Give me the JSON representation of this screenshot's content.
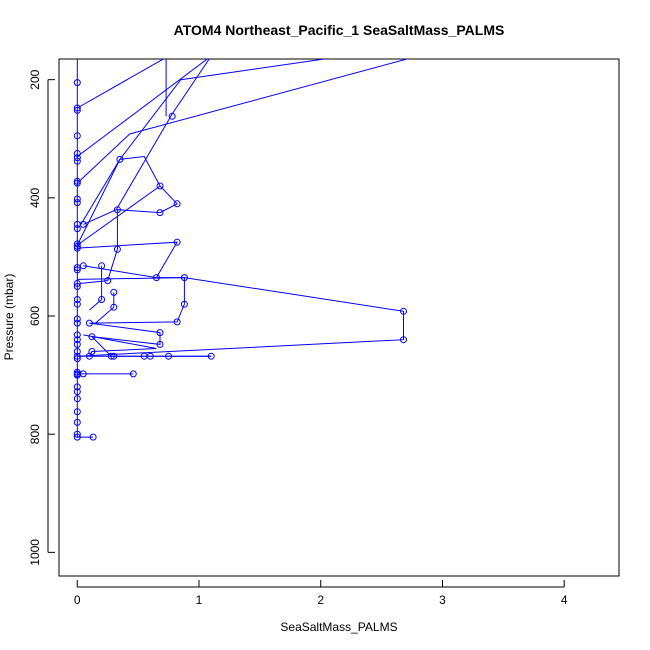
{
  "chart_data": {
    "type": "line",
    "title": "ATOM4 Northeast_Pacific_1 SeaSaltMass_PALMS",
    "xlabel": "SeaSaltMass_PALMS",
    "ylabel": "Pressure (mbar)",
    "xlim": [
      -0.15,
      4.45
    ],
    "ylim": [
      1040,
      165
    ],
    "y_inverted": true,
    "x_ticks": [
      0,
      1,
      2,
      3,
      4
    ],
    "y_ticks": [
      200,
      400,
      600,
      800,
      1000
    ],
    "grid": false,
    "legend": "none",
    "series_color": "#0000ff",
    "series": [
      {
        "points": [
          [
            0.0,
            160
          ],
          [
            0.0,
            205
          ],
          [
            0.0,
            248
          ],
          [
            0.0,
            252
          ],
          [
            0.0,
            295
          ],
          [
            0.0,
            325
          ],
          [
            0.0,
            332
          ],
          [
            0.0,
            338
          ],
          [
            0.0,
            372
          ],
          [
            0.0,
            375
          ],
          [
            0.0,
            402
          ],
          [
            0.0,
            408
          ],
          [
            0.0,
            445
          ],
          [
            0.0,
            452
          ],
          [
            0.0,
            478
          ],
          [
            0.0,
            482
          ],
          [
            0.0,
            485
          ],
          [
            0.0,
            518
          ],
          [
            0.0,
            522
          ],
          [
            0.0,
            545
          ],
          [
            0.0,
            550
          ],
          [
            0.0,
            572
          ],
          [
            0.0,
            580
          ],
          [
            0.0,
            605
          ],
          [
            0.0,
            612
          ],
          [
            0.0,
            632
          ],
          [
            0.0,
            640
          ],
          [
            0.0,
            648
          ],
          [
            0.0,
            660
          ],
          [
            0.0,
            668
          ],
          [
            0.0,
            672
          ],
          [
            0.0,
            695
          ],
          [
            0.0,
            698
          ],
          [
            0.0,
            700
          ],
          [
            0.0,
            720
          ],
          [
            0.0,
            728
          ],
          [
            0.0,
            740
          ],
          [
            0.0,
            762
          ],
          [
            0.0,
            780
          ],
          [
            0.0,
            800
          ],
          [
            0.0,
            805
          ],
          [
            0.13,
            805
          ],
          [
            0.0,
            805
          ]
        ]
      },
      {
        "points": [
          [
            0.05,
            445
          ],
          [
            0.32,
            420
          ],
          [
            0.78,
            258
          ],
          [
            1.1,
            160
          ]
        ]
      },
      {
        "points": [
          [
            0.0,
            330
          ],
          [
            1.1,
            160
          ]
        ]
      },
      {
        "points": [
          [
            0.0,
            248
          ],
          [
            0.75,
            160
          ]
        ]
      },
      {
        "points": [
          [
            0.73,
            160
          ],
          [
            0.73,
            262
          ]
        ]
      },
      {
        "points": [
          [
            0.0,
            375
          ],
          [
            0.43,
            292
          ],
          [
            2.8,
            160
          ]
        ]
      },
      {
        "points": [
          [
            0.0,
            480
          ],
          [
            0.35,
            335
          ],
          [
            0.85,
            200
          ],
          [
            2.2,
            160
          ]
        ]
      },
      {
        "points": [
          [
            0.03,
            445
          ],
          [
            0.35,
            335
          ],
          [
            0.55,
            330
          ],
          [
            0.68,
            380
          ],
          [
            0.82,
            410
          ],
          [
            0.68,
            425
          ],
          [
            0.33,
            420
          ],
          [
            0.33,
            487
          ],
          [
            0.28,
            520
          ],
          [
            0.25,
            540
          ],
          [
            0.02,
            545
          ]
        ]
      },
      {
        "points": [
          [
            0.0,
            480
          ],
          [
            0.68,
            380
          ]
        ]
      },
      {
        "points": [
          [
            0.0,
            485
          ],
          [
            0.82,
            475
          ],
          [
            0.65,
            535
          ],
          [
            0.05,
            515
          ]
        ]
      },
      {
        "points": [
          [
            0.65,
            535
          ],
          [
            0.88,
            535
          ],
          [
            0.88,
            580
          ],
          [
            0.82,
            610
          ],
          [
            0.1,
            612
          ],
          [
            0.68,
            628
          ],
          [
            0.68,
            648
          ],
          [
            0.12,
            635
          ],
          [
            0.28,
            668
          ],
          [
            0.55,
            668
          ],
          [
            1.1,
            668
          ]
        ]
      },
      {
        "points": [
          [
            0.2,
            515
          ],
          [
            0.2,
            572
          ],
          [
            0.1,
            590
          ]
        ]
      },
      {
        "points": [
          [
            0.3,
            560
          ],
          [
            0.3,
            585
          ],
          [
            0.15,
            612
          ]
        ]
      },
      {
        "points": [
          [
            0.05,
            632
          ],
          [
            0.65,
            655
          ],
          [
            0.12,
            660
          ],
          [
            0.1,
            668
          ]
        ]
      },
      {
        "points": [
          [
            0.0,
            538
          ],
          [
            0.88,
            535
          ],
          [
            2.68,
            592
          ],
          [
            2.68,
            640
          ],
          [
            0.0,
            668
          ]
        ]
      },
      {
        "points": [
          [
            0.0,
            668
          ],
          [
            1.1,
            668
          ]
        ]
      },
      {
        "points": [
          [
            0.0,
            698
          ],
          [
            0.46,
            698
          ]
        ]
      }
    ],
    "markers": [
      [
        0.0,
        205
      ],
      [
        0.0,
        248
      ],
      [
        0.0,
        252
      ],
      [
        0.0,
        295
      ],
      [
        0.0,
        325
      ],
      [
        0.0,
        332
      ],
      [
        0.0,
        338
      ],
      [
        0.0,
        372
      ],
      [
        0.0,
        375
      ],
      [
        0.0,
        402
      ],
      [
        0.0,
        408
      ],
      [
        0.0,
        445
      ],
      [
        0.0,
        452
      ],
      [
        0.0,
        478
      ],
      [
        0.0,
        482
      ],
      [
        0.0,
        485
      ],
      [
        0.0,
        518
      ],
      [
        0.0,
        522
      ],
      [
        0.0,
        545
      ],
      [
        0.0,
        550
      ],
      [
        0.0,
        572
      ],
      [
        0.0,
        580
      ],
      [
        0.0,
        605
      ],
      [
        0.0,
        612
      ],
      [
        0.0,
        632
      ],
      [
        0.0,
        640
      ],
      [
        0.0,
        648
      ],
      [
        0.0,
        660
      ],
      [
        0.0,
        668
      ],
      [
        0.0,
        672
      ],
      [
        0.0,
        695
      ],
      [
        0.0,
        698
      ],
      [
        0.0,
        700
      ],
      [
        0.0,
        720
      ],
      [
        0.0,
        728
      ],
      [
        0.0,
        740
      ],
      [
        0.0,
        762
      ],
      [
        0.0,
        780
      ],
      [
        0.0,
        800
      ],
      [
        0.0,
        805
      ],
      [
        0.13,
        805
      ],
      [
        0.78,
        262
      ],
      [
        0.35,
        335
      ],
      [
        0.68,
        380
      ],
      [
        0.82,
        410
      ],
      [
        0.68,
        425
      ],
      [
        0.33,
        420
      ],
      [
        0.33,
        487
      ],
      [
        0.05,
        445
      ],
      [
        0.82,
        475
      ],
      [
        0.65,
        535
      ],
      [
        0.88,
        535
      ],
      [
        0.88,
        580
      ],
      [
        0.82,
        610
      ],
      [
        0.2,
        515
      ],
      [
        0.2,
        572
      ],
      [
        0.3,
        560
      ],
      [
        0.3,
        585
      ],
      [
        0.25,
        540
      ],
      [
        0.05,
        515
      ],
      [
        0.1,
        612
      ],
      [
        0.68,
        628
      ],
      [
        0.68,
        648
      ],
      [
        0.12,
        635
      ],
      [
        0.12,
        660
      ],
      [
        0.28,
        668
      ],
      [
        0.55,
        668
      ],
      [
        0.6,
        668
      ],
      [
        0.75,
        668
      ],
      [
        1.1,
        668
      ],
      [
        2.68,
        592
      ],
      [
        2.68,
        640
      ],
      [
        0.46,
        698
      ],
      [
        0.05,
        698
      ],
      [
        0.1,
        668
      ],
      [
        0.3,
        668
      ]
    ]
  }
}
